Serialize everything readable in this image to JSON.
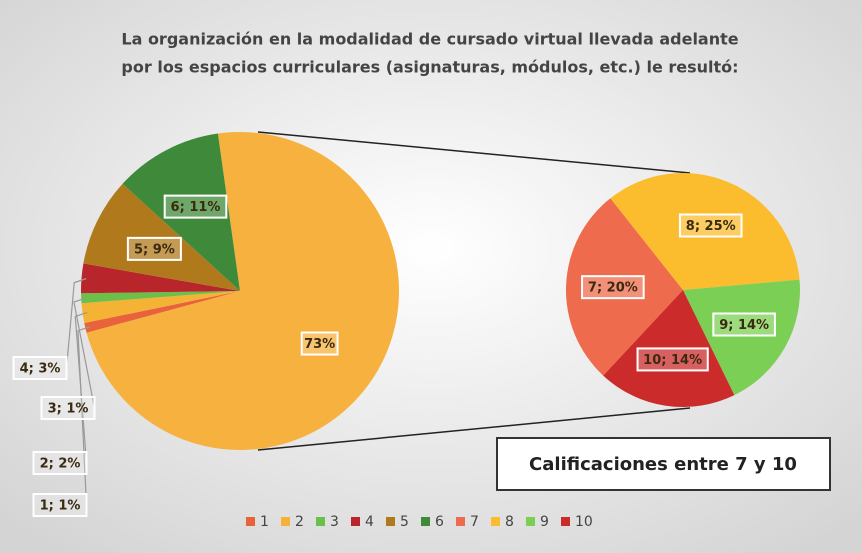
{
  "chart_data": {
    "type": "pie-of-pie",
    "title": [
      "La organización en la modalidad de cursado virtual llevada adelante",
      "por los espacios curriculares (asignaturas, módulos, etc.) le resultó:"
    ],
    "categories": [
      "1",
      "2",
      "3",
      "4",
      "5",
      "6",
      "7",
      "8",
      "9",
      "10"
    ],
    "values": [
      1,
      2,
      1,
      3,
      9,
      11,
      20,
      25,
      14,
      14
    ],
    "value_labels": [
      "1; 1%",
      "2; 2%",
      "3; 1%",
      "4; 3%",
      "5; 9%",
      "6; 11%",
      "7; 20%",
      "8; 25%",
      "9; 14%",
      "10; 14%"
    ],
    "colors": [
      "#e8623a",
      "#f5b335",
      "#6cc04a",
      "#b8252a",
      "#b07a1c",
      "#3f8a3a",
      "#ee6b4d",
      "#fbbd2e",
      "#7ccf55",
      "#cc2b2b"
    ],
    "other": {
      "value": 73,
      "value_label": "73%",
      "color": "#f6b13e"
    },
    "secondary_count": 4,
    "annotation": "Calificaciones entre 7 y 10"
  }
}
